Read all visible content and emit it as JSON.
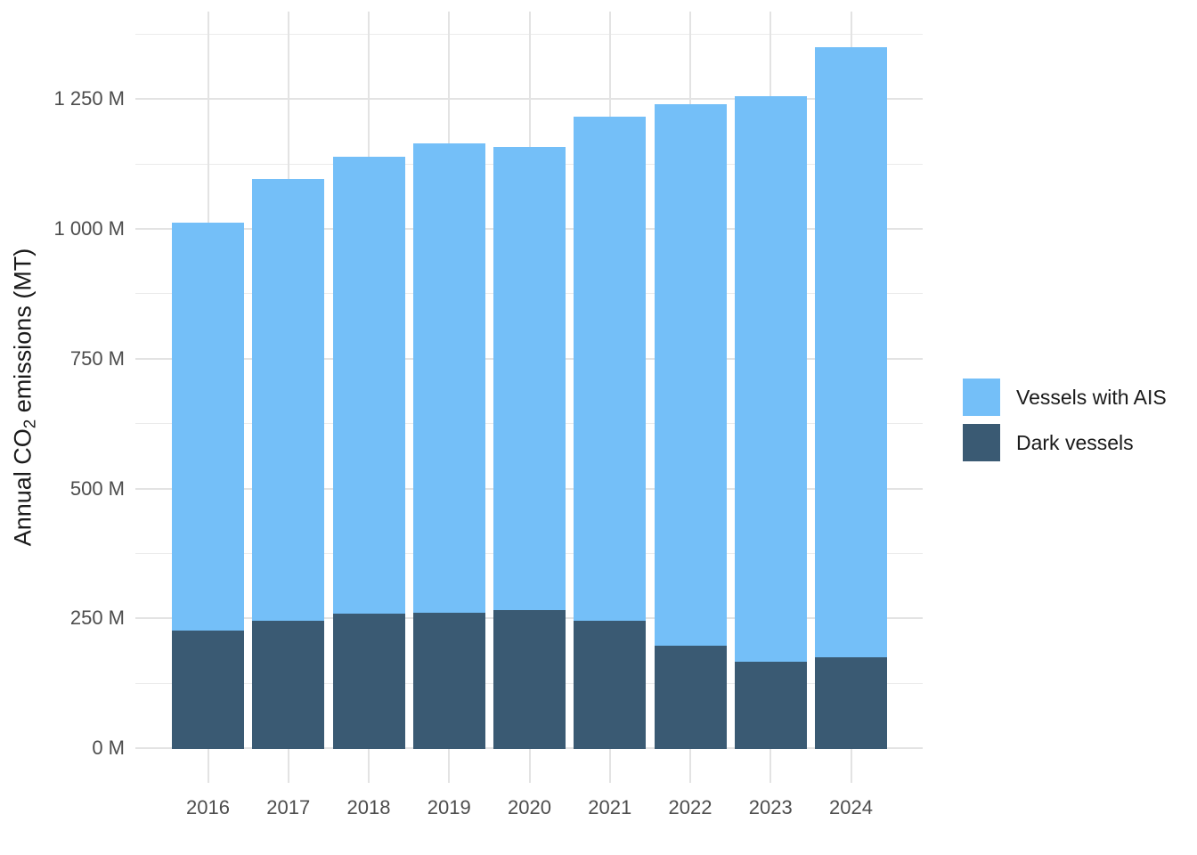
{
  "chart_data": {
    "type": "bar",
    "stacked": true,
    "title": "",
    "xlabel": "",
    "ylabel": "Annual CO₂ emissions (MT)",
    "ylabel_parts": {
      "prefix": "Annual CO",
      "sub": "2",
      "suffix": " emissions (MT)"
    },
    "categories": [
      "2016",
      "2017",
      "2018",
      "2019",
      "2020",
      "2021",
      "2022",
      "2023",
      "2024"
    ],
    "series": [
      {
        "name": "Vessels with AIS",
        "color": "#74bff8",
        "values": [
          785,
          850,
          881,
          904,
          892,
          970,
          1044,
          1089,
          1175
        ]
      },
      {
        "name": "Dark vessels",
        "color": "#3a5a73",
        "values": [
          227,
          246,
          259,
          261,
          266,
          246,
          197,
          167,
          175
        ]
      }
    ],
    "stack_order_bottom_to_top": [
      "Dark vessels",
      "Vessels with AIS"
    ],
    "totals": [
      1012,
      1096,
      1140,
      1165,
      1158,
      1216,
      1241,
      1256,
      1350
    ],
    "unit": "M",
    "yticks_major": [
      0,
      250,
      500,
      750,
      1000,
      1250
    ],
    "yticks_minor": [
      125,
      375,
      625,
      875,
      1125,
      1375
    ],
    "ytick_labels": [
      "0 M",
      "250 M",
      "500 M",
      "750 M",
      "1 000 M",
      "1 250 M"
    ],
    "ylim": [
      0,
      1350
    ],
    "grid": true,
    "legend_position": "right",
    "colors": {
      "background": "#ffffff",
      "grid_major": "#e3e3e3",
      "grid_minor": "#ebebeb",
      "tick_text": "#4d4d4d",
      "label_text": "#1a1a1a"
    }
  }
}
